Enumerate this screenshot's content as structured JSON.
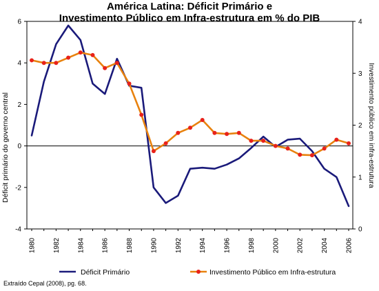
{
  "chart_data": {
    "type": "line",
    "title": "América Latina: Déficit Primário e",
    "subtitle": "Investimento Público em Infra-estrutura em % do PIB",
    "ylabel_left": "Déficit primário do governo central",
    "ylabel_right": "Investimento público em infra-estrutura",
    "ylim_left": [
      -4,
      6
    ],
    "ylim_right": [
      0,
      4
    ],
    "yticks_left": [
      "-4",
      "-2",
      "0",
      "2",
      "4",
      "6"
    ],
    "yticks_right": [
      "0",
      "1",
      "2",
      "3",
      "4"
    ],
    "xlim": [
      1980,
      2006
    ],
    "xticks": [
      "1980",
      "1982",
      "1984",
      "1986",
      "1988",
      "1990",
      "1992",
      "1994",
      "1996",
      "1998",
      "2000",
      "2002",
      "2004",
      "2006"
    ],
    "grid": false,
    "legend_position": "bottom",
    "series": [
      {
        "name": "Déficit Primário",
        "axis": "left",
        "color": "#1a1a7a",
        "marker": "none",
        "x": [
          1980,
          1981,
          1982,
          1983,
          1984,
          1985,
          1986,
          1987,
          1988,
          1989,
          1990,
          1991,
          1992,
          1993,
          1994,
          1995,
          1996,
          1997,
          1998,
          1999,
          2000,
          2001,
          2002,
          2003,
          2004,
          2005,
          2006
        ],
        "values": [
          0.5,
          3.1,
          4.9,
          5.8,
          5.1,
          3.0,
          2.5,
          4.2,
          2.9,
          2.8,
          -2.0,
          -2.75,
          -2.4,
          -1.1,
          -1.05,
          -1.1,
          -0.9,
          -0.6,
          -0.1,
          0.45,
          -0.05,
          0.3,
          0.35,
          -0.25,
          -1.1,
          -1.5,
          -2.9
        ]
      },
      {
        "name": "Investimento Público em Infra-estrutura",
        "axis": "right",
        "color": "#e8820e",
        "marker_color": "#e8221a",
        "marker": "circle",
        "x": [
          1980,
          1981,
          1982,
          1983,
          1984,
          1985,
          1986,
          1987,
          1988,
          1989,
          1990,
          1991,
          1992,
          1993,
          1994,
          1995,
          1996,
          1997,
          1998,
          1999,
          2000,
          2001,
          2002,
          2003,
          2004,
          2005,
          2006
        ],
        "values": [
          3.25,
          3.2,
          3.2,
          3.3,
          3.4,
          3.35,
          3.1,
          3.2,
          2.8,
          2.2,
          1.5,
          1.65,
          1.85,
          1.95,
          2.1,
          1.85,
          1.83,
          1.85,
          1.7,
          1.7,
          1.6,
          1.55,
          1.43,
          1.42,
          1.55,
          1.72,
          1.65
        ]
      }
    ]
  },
  "source_note": "Extraído Cepal (2008), pg. 68."
}
